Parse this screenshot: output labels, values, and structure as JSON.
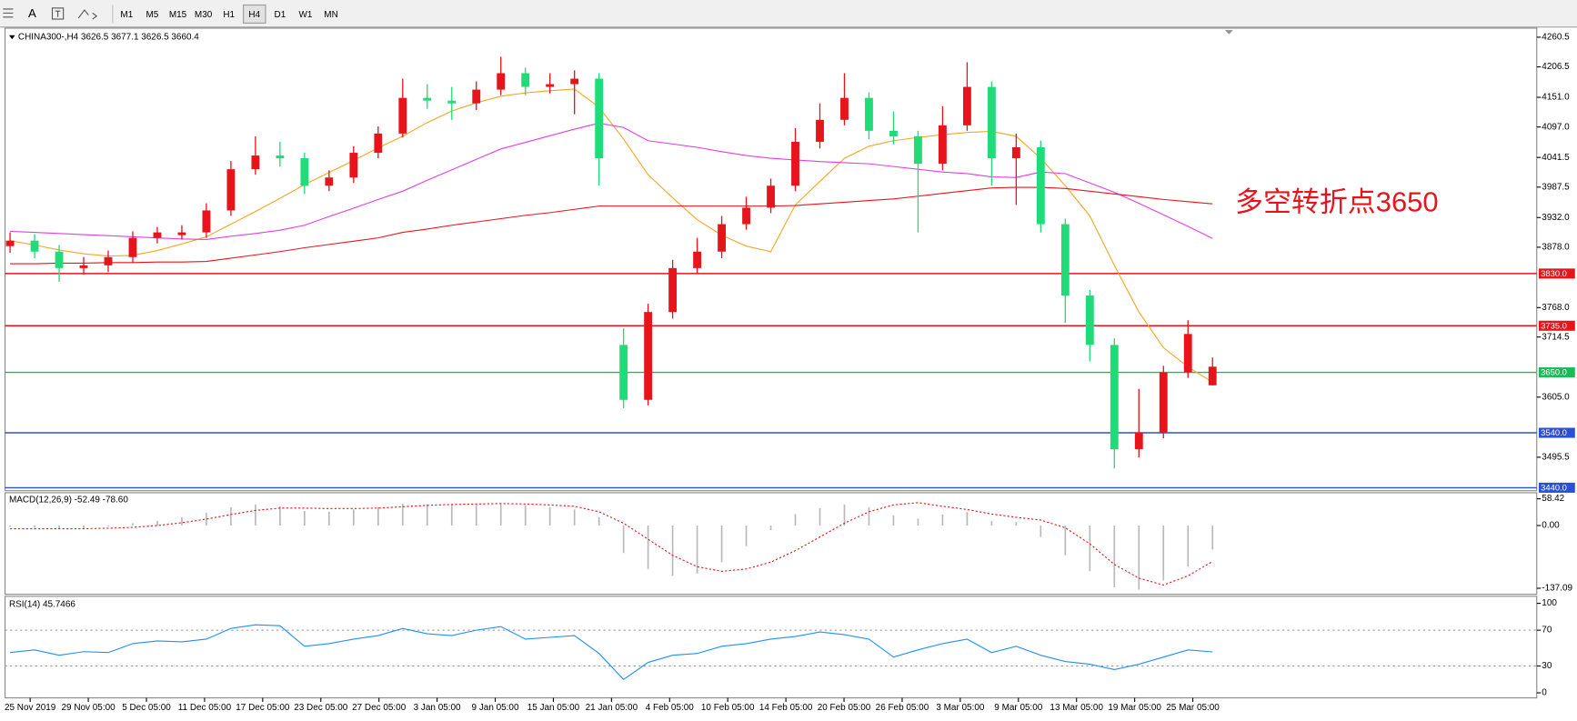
{
  "toolbar": {
    "text_tool": "A",
    "timeframes": [
      "M1",
      "M5",
      "M15",
      "M30",
      "H1",
      "H4",
      "D1",
      "W1",
      "MN"
    ],
    "active_index": 5
  },
  "chart_data": [
    {
      "type": "candlestick",
      "title": "CHINA300-,H4  3626.5 3677.1 3626.5 3660.4",
      "x_tick_labels": [
        "25 Nov 2019",
        "29 Nov 05:00",
        "5 Dec 05:00",
        "11 Dec 05:00",
        "17 Dec 05:00",
        "23 Dec 05:00",
        "27 Dec 05:00",
        "3 Jan 05:00",
        "9 Jan 05:00",
        "15 Jan 05:00",
        "21 Jan 05:00",
        "4 Feb 05:00",
        "10 Feb 05:00",
        "14 Feb 05:00",
        "20 Feb 05:00",
        "26 Feb 05:00",
        "3 Mar 05:00",
        "9 Mar 05:00",
        "13 Mar 05:00",
        "19 Mar 05:00",
        "25 Mar 05:00"
      ],
      "open": [
        3880,
        3890,
        3870,
        3840,
        3845,
        3860,
        3895,
        3900,
        3905,
        3945,
        4020,
        4045,
        4040,
        3990,
        4005,
        4050,
        4085,
        4150,
        4145,
        4140,
        4165,
        4195,
        4170,
        4175,
        4185,
        3700,
        3600,
        3760,
        3840,
        3870,
        3920,
        3950,
        3990,
        4070,
        4110,
        4150,
        4090,
        4080,
        4030,
        4100,
        4170,
        4040,
        4060,
        3920,
        3790,
        3700,
        3510,
        3540,
        3650,
        3626.5
      ],
      "high": [
        3905,
        3902,
        3882,
        3860,
        3872,
        3907,
        3915,
        3918,
        3958,
        4035,
        4080,
        4070,
        4050,
        4018,
        4062,
        4098,
        4185,
        4175,
        4170,
        4180,
        4225,
        4205,
        4195,
        4200,
        4195,
        3730,
        3775,
        3855,
        3895,
        3935,
        3970,
        4003,
        4095,
        4140,
        4195,
        4160,
        4125,
        4090,
        4135,
        4215,
        4180,
        4085,
        4072,
        3930,
        3800,
        3712,
        3620,
        3662,
        3745,
        3677.1
      ],
      "low": [
        3868,
        3858,
        3815,
        3828,
        3833,
        3850,
        3885,
        3892,
        3895,
        3935,
        4010,
        4025,
        3975,
        3980,
        3995,
        4040,
        4078,
        4130,
        4110,
        4128,
        4155,
        4155,
        4158,
        4120,
        3990,
        3585,
        3590,
        3748,
        3830,
        3858,
        3910,
        3940,
        3980,
        4058,
        4100,
        4075,
        4065,
        3905,
        4018,
        4090,
        3990,
        3955,
        3905,
        3740,
        3670,
        3475,
        3495,
        3530,
        3640,
        3626.5
      ],
      "close": [
        3890,
        3870,
        3840,
        3845,
        3860,
        3895,
        3905,
        3905,
        3945,
        4020,
        4045,
        4040,
        3990,
        4005,
        4050,
        4085,
        4150,
        4145,
        4140,
        4165,
        4195,
        4170,
        4175,
        4185,
        4040,
        3600,
        3760,
        3840,
        3870,
        3920,
        3950,
        3990,
        4070,
        4110,
        4150,
        4090,
        4080,
        4030,
        4100,
        4170,
        4040,
        4060,
        3920,
        3790,
        3700,
        3510,
        3540,
        3650,
        3720,
        3660.4
      ],
      "up_color": "#e8141c",
      "down_color": "#1fdc78",
      "series": [
        {
          "color": "#f5a623",
          "values": [
            3890,
            3882,
            3873,
            3866,
            3862,
            3863,
            3872,
            3884,
            3897,
            3920,
            3943,
            3967,
            3992,
            4014,
            4036,
            4059,
            4080,
            4105,
            4126,
            4141,
            4153,
            4159,
            4163,
            4166,
            4133,
            4075,
            4010,
            3968,
            3928,
            3900,
            3880,
            3870,
            3955,
            3998,
            4040,
            4062,
            4072,
            4078,
            4083,
            4087,
            4089,
            4080,
            4040,
            3990,
            3935,
            3845,
            3760,
            3695,
            3660,
            3632
          ]
        },
        {
          "color": "#e040e0",
          "values": [
            3907,
            3905,
            3903,
            3901,
            3899,
            3897,
            3895,
            3893,
            3892,
            3898,
            3903,
            3909,
            3918,
            3934,
            3949,
            3965,
            3980,
            4000,
            4019,
            4038,
            4057,
            4069,
            4081,
            4093,
            4104,
            4096,
            4072,
            4066,
            4060,
            4052,
            4045,
            4040,
            4037,
            4034,
            4032,
            4030,
            4025,
            4020,
            4015,
            4012,
            4006,
            4005,
            4015,
            4012,
            3995,
            3978,
            3958,
            3937,
            3916,
            3894
          ]
        },
        {
          "color": "#e8141c",
          "values": [
            3848,
            3848,
            3849,
            3849,
            3850,
            3850,
            3851,
            3851,
            3852,
            3858,
            3864,
            3870,
            3877,
            3883,
            3889,
            3895,
            3905,
            3911,
            3918,
            3924,
            3930,
            3936,
            3941,
            3947,
            3953,
            3953,
            3953,
            3953,
            3953,
            3953,
            3953,
            3953,
            3954,
            3957,
            3960,
            3963,
            3966,
            3971,
            3976,
            3981,
            3986,
            3987,
            3987,
            3985,
            3980,
            3975,
            3970,
            3965,
            3961,
            3957
          ]
        }
      ],
      "ylim": [
        3440,
        4260.5
      ],
      "yticks": [
        4260.5,
        4206.5,
        {
          "value": 4151,
          "label": "4151.0"
        },
        {
          "value": 4097,
          "label": "4097.0"
        },
        4041.5,
        3987.5,
        {
          "value": 3932,
          "label": "3932.0"
        },
        {
          "value": 3878,
          "label": "3878.0"
        },
        {
          "value": 3768,
          "label": "3768.0"
        },
        3714.5,
        {
          "value": 3605,
          "label": "3605.0"
        },
        3495.5
      ],
      "levels": [
        {
          "value": 3830,
          "label": "3830.0",
          "color": "#e8141c"
        },
        {
          "value": 3735,
          "label": "3735.0",
          "color": "#e8141c"
        },
        {
          "value": 3650,
          "label": "3650.0",
          "color": "#1db954"
        },
        {
          "value": 3540,
          "label": "3540.0",
          "color": "#2b4fd8"
        },
        {
          "value": 3440,
          "label": "3440.0",
          "color": "#2b4fd8"
        }
      ],
      "annotation": "多空转折点3650",
      "annotation_color": "#e8141c"
    },
    {
      "type": "macd",
      "title": "MACD(12,26,9) -52.49 -78.60",
      "histogram": {
        "color": "#b8b8b8",
        "values": [
          -3,
          -5,
          -8,
          -6,
          -2,
          5,
          10,
          18,
          28,
          40,
          46,
          42,
          32,
          30,
          35,
          40,
          48,
          47,
          45,
          46,
          48,
          44,
          40,
          35,
          18,
          -60,
          -95,
          -110,
          -105,
          -80,
          -45,
          -10,
          25,
          38,
          46,
          40,
          22,
          15,
          24,
          30,
          10,
          8,
          -25,
          -65,
          -100,
          -135,
          -140,
          -120,
          -90,
          -52.49
        ]
      },
      "signal": {
        "color": "#e8141c",
        "values": [
          -7,
          -7,
          -7,
          -7,
          -6,
          -4,
          0,
          6,
          14,
          24,
          33,
          38,
          38,
          37,
          37,
          38,
          41,
          44,
          46,
          47,
          48,
          47,
          45,
          42,
          30,
          5,
          -30,
          -65,
          -90,
          -100,
          -95,
          -80,
          -55,
          -25,
          5,
          30,
          45,
          50,
          42,
          35,
          25,
          18,
          12,
          -5,
          -40,
          -85,
          -115,
          -130,
          -110,
          -78.6
        ]
      },
      "ylim": [
        -137.09,
        58.42
      ],
      "yticks": [
        58.42,
        {
          "value": 0,
          "label": "0.00"
        },
        -137.09
      ]
    },
    {
      "type": "rsi",
      "title": "RSI(14) 45.7466",
      "color": "#1e8fff",
      "values": [
        45,
        48,
        42,
        46,
        45,
        55,
        58,
        57,
        60,
        72,
        76,
        75,
        52,
        55,
        60,
        64,
        72,
        66,
        64,
        70,
        74,
        60,
        62,
        64,
        44,
        15,
        34,
        42,
        44,
        52,
        55,
        60,
        63,
        68,
        65,
        60,
        40,
        48,
        55,
        60,
        45,
        52,
        42,
        35,
        32,
        26,
        32,
        40,
        48,
        45.7466
      ],
      "ylim": [
        0,
        100
      ],
      "yticks": [
        100,
        70,
        30,
        0
      ],
      "grid": "dotted"
    }
  ]
}
